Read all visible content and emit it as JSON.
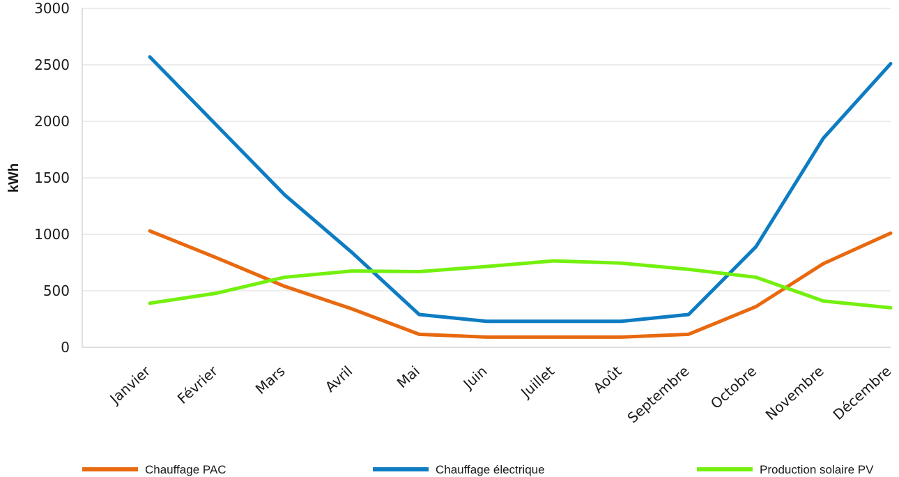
{
  "chart_data": {
    "type": "line",
    "title": "",
    "xlabel": "",
    "ylabel": "kWh",
    "ylim": [
      0,
      3000
    ],
    "yticks": [
      0,
      500,
      1000,
      1500,
      2000,
      2500,
      3000
    ],
    "grid": true,
    "legend_position": "bottom",
    "categories": [
      "Janvier",
      "Février",
      "Mars",
      "Avril",
      "Mai",
      "Juin",
      "Juillet",
      "Août",
      "Septembre",
      "Octobre",
      "Novembre",
      "Décembre"
    ],
    "series": [
      {
        "name": "Chauffage PAC",
        "color": "#E8690F",
        "values": [
          1030,
          790,
          540,
          340,
          115,
          90,
          90,
          90,
          115,
          360,
          740,
          1010
        ]
      },
      {
        "name": "Chauffage électrique",
        "color": "#0E7CC2",
        "values": [
          2570,
          1960,
          1350,
          840,
          290,
          230,
          230,
          230,
          290,
          890,
          1850,
          2510
        ]
      },
      {
        "name": "Production solaire PV",
        "color": "#74F00E",
        "values": [
          390,
          480,
          620,
          675,
          670,
          715,
          765,
          745,
          690,
          620,
          410,
          350
        ]
      }
    ]
  }
}
